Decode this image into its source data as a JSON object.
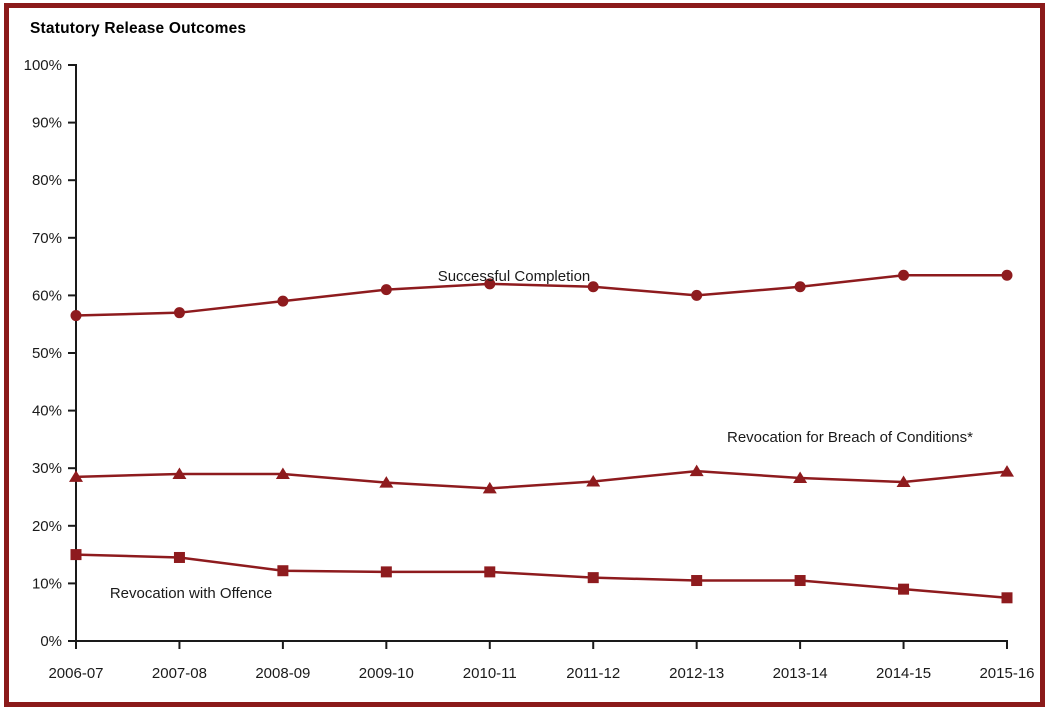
{
  "panel": {
    "border_color": "#8b1a1a",
    "background": "#ffffff"
  },
  "chart_data": {
    "type": "line",
    "title": "Statutory Release Outcomes",
    "xlabel": "",
    "ylabel": "",
    "categories": [
      "2006-07",
      "2007-08",
      "2008-09",
      "2009-10",
      "2010-11",
      "2011-12",
      "2012-13",
      "2013-14",
      "2014-15",
      "2015-16"
    ],
    "series": [
      {
        "name": "Successful Completion",
        "marker": "circle",
        "values": [
          56.5,
          57,
          59,
          61,
          62,
          61.5,
          60,
          61.5,
          63.5,
          63.5
        ]
      },
      {
        "name": "Revocation for Breach of Conditions*",
        "marker": "triangle",
        "values": [
          28.5,
          29,
          29,
          27.5,
          26.5,
          27.7,
          29.5,
          28.3,
          27.6,
          29.4
        ]
      },
      {
        "name": "Revocation with Offence",
        "marker": "square",
        "values": [
          15,
          14.5,
          12.2,
          12,
          12,
          11,
          10.5,
          10.5,
          9,
          7.5
        ]
      }
    ],
    "ylim": [
      0,
      100
    ],
    "ytick_step": 10,
    "ytick_labels": [
      "0%",
      "10%",
      "20%",
      "30%",
      "40%",
      "50%",
      "60%",
      "70%",
      "80%",
      "90%",
      "100%"
    ],
    "grid": "off",
    "legend_position": "inline-labels",
    "series_color": "#8e1b1e",
    "axis_color": "#1a1a1a",
    "label_text_color": "#1a1a1a"
  }
}
